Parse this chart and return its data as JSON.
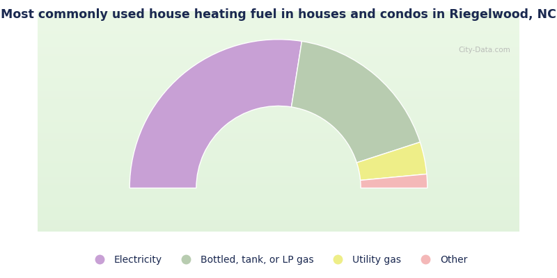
{
  "title": "Most commonly used house heating fuel in houses and condos in Riegelwood, NC",
  "segments": [
    {
      "label": "Electricity",
      "value": 55.0,
      "color": "#C8A0D5"
    },
    {
      "label": "Bottled, tank, or LP gas",
      "value": 35.0,
      "color": "#B8CCB0"
    },
    {
      "label": "Utility gas",
      "value": 7.0,
      "color": "#EEEE88"
    },
    {
      "label": "Other",
      "value": 3.0,
      "color": "#F4B8B8"
    }
  ],
  "bg_color": "#FFFFFF",
  "chart_bg_top": "#E8F5E0",
  "chart_bg_bottom": "#D0EAD0",
  "title_color": "#1A2850",
  "title_fontsize": 12.5,
  "legend_fontsize": 10
}
